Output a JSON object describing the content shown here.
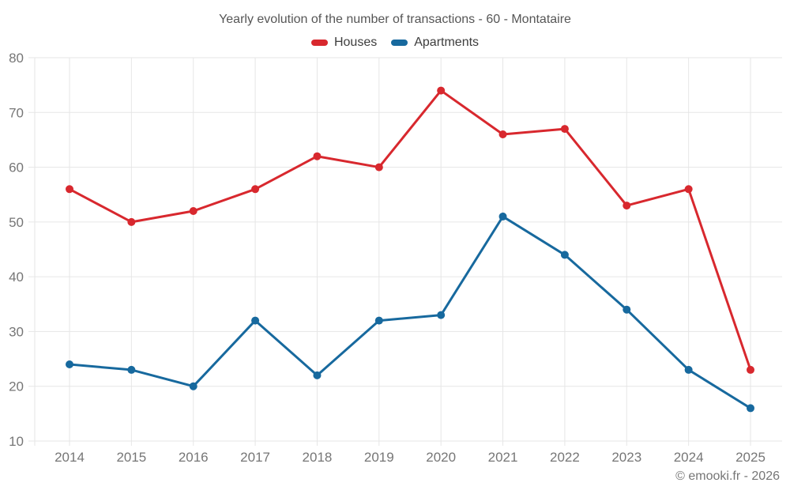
{
  "chart": {
    "title": "Yearly evolution of the number of transactions - 60 - Montataire"
  },
  "chart_data": {
    "type": "line",
    "title": "Yearly evolution of the number of transactions - 60 - Montataire",
    "x": [
      "2014",
      "2015",
      "2016",
      "2017",
      "2018",
      "2019",
      "2020",
      "2021",
      "2022",
      "2023",
      "2024",
      "2025"
    ],
    "series": [
      {
        "name": "Houses",
        "color": "#d8282e",
        "values": [
          56,
          50,
          52,
          56,
          62,
          60,
          74,
          66,
          67,
          53,
          56,
          23
        ]
      },
      {
        "name": "Apartments",
        "color": "#17699e",
        "values": [
          24,
          23,
          20,
          32,
          22,
          32,
          33,
          51,
          44,
          34,
          23,
          16
        ]
      }
    ],
    "xlabel": "",
    "ylabel": "",
    "ylim": [
      10,
      80
    ],
    "yticks": [
      10,
      20,
      30,
      40,
      50,
      60,
      70,
      80
    ],
    "grid": true,
    "legend_position": "top",
    "marker": "circle"
  },
  "footer": {
    "copyright": "© emooki.fr - 2026"
  }
}
